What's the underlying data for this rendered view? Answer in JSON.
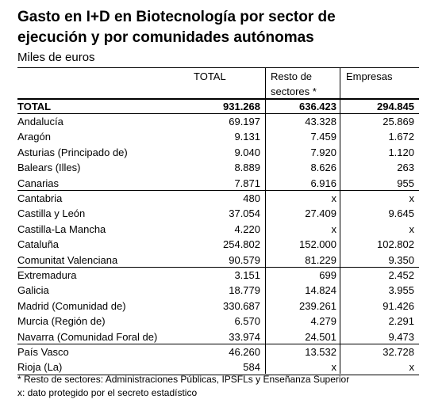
{
  "header": {
    "title_lines": [
      "Gasto en I+D en Biotecnología por sector de",
      "ejecución y por comunidades autónomas"
    ],
    "subtitle": "Miles de euros"
  },
  "table": {
    "columns": [
      "TOTAL",
      "Resto de sectores *",
      "Empresas"
    ],
    "total_row": [
      "TOTAL",
      "931.268",
      "636.423",
      "294.845"
    ],
    "groups": [
      {
        "rows": [
          [
            "Andalucía",
            "69.197",
            "43.328",
            "25.869"
          ],
          [
            "Aragón",
            "9.131",
            "7.459",
            "1.672"
          ],
          [
            "Asturias (Principado de)",
            "9.040",
            "7.920",
            "1.120"
          ],
          [
            "Balears (Illes)",
            "8.889",
            "8.626",
            "263"
          ],
          [
            "Canarias",
            "7.871",
            "6.916",
            "955"
          ]
        ]
      },
      {
        "rows": [
          [
            "Cantabria",
            "480",
            "x",
            "x"
          ],
          [
            "Castilla y León",
            "37.054",
            "27.409",
            "9.645"
          ],
          [
            "Castilla-La Mancha",
            "4.220",
            "x",
            "x"
          ],
          [
            "Cataluña",
            "254.802",
            "152.000",
            "102.802"
          ],
          [
            "Comunitat Valenciana",
            "90.579",
            "81.229",
            "9.350"
          ]
        ]
      },
      {
        "rows": [
          [
            "Extremadura",
            "3.151",
            "699",
            "2.452"
          ],
          [
            "Galicia",
            "18.779",
            "14.824",
            "3.955"
          ],
          [
            "Madrid (Comunidad de)",
            "330.687",
            "239.261",
            "91.426"
          ],
          [
            "Murcia (Región de)",
            "6.570",
            "4.279",
            "2.291"
          ],
          [
            "Navarra (Comunidad Foral de)",
            "33.974",
            "24.501",
            "9.473"
          ]
        ]
      },
      {
        "rows": [
          [
            "País Vasco",
            "46.260",
            "13.532",
            "32.728"
          ],
          [
            "Rioja (La)",
            "584",
            "x",
            "x"
          ]
        ]
      }
    ]
  },
  "footnotes": [
    "* Resto de sectores: Administraciones Públicas, IPSFLs y Enseñanza Superior",
    "x: dato protegido por el secreto estadístico"
  ]
}
